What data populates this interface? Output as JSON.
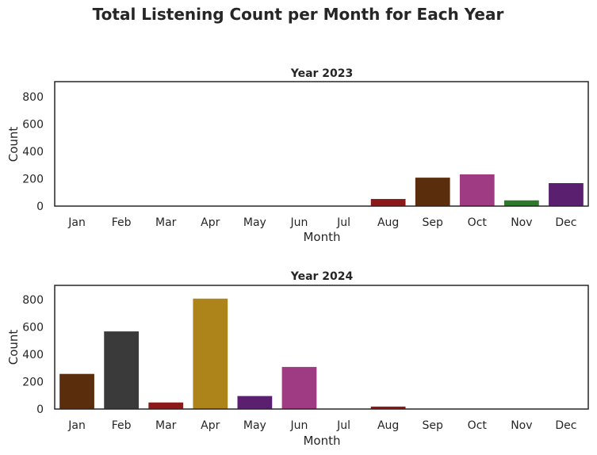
{
  "chart_data": {
    "type": "bar",
    "title": "Total Listening Count per Month for Each Year",
    "categories": [
      "Jan",
      "Feb",
      "Mar",
      "Apr",
      "May",
      "Jun",
      "Jul",
      "Aug",
      "Sep",
      "Oct",
      "Nov",
      "Dec"
    ],
    "month_colors": [
      "#5a2d0c",
      "#3a3a3a",
      "#8b1a1a",
      "#ad841a",
      "#5a1f6e",
      "#9e3b82",
      "#404040",
      "#8b1a1a",
      "#5a2d0c",
      "#9e3b82",
      "#2d7a2d",
      "#5a1f6e"
    ],
    "subplots": [
      {
        "title": "Year 2023",
        "xlabel": "Month",
        "ylabel": "Count",
        "ylim": [
          0,
          910
        ],
        "yticks": [
          0,
          200,
          400,
          600,
          800
        ],
        "values": [
          0,
          0,
          0,
          0,
          0,
          0,
          0,
          52,
          208,
          232,
          42,
          168
        ]
      },
      {
        "title": "Year 2024",
        "xlabel": "Month",
        "ylabel": "Count",
        "ylim": [
          0,
          905
        ],
        "yticks": [
          0,
          200,
          400,
          600,
          800
        ],
        "values": [
          257,
          568,
          48,
          808,
          95,
          308,
          2,
          18,
          0,
          0,
          0,
          0
        ]
      }
    ]
  }
}
